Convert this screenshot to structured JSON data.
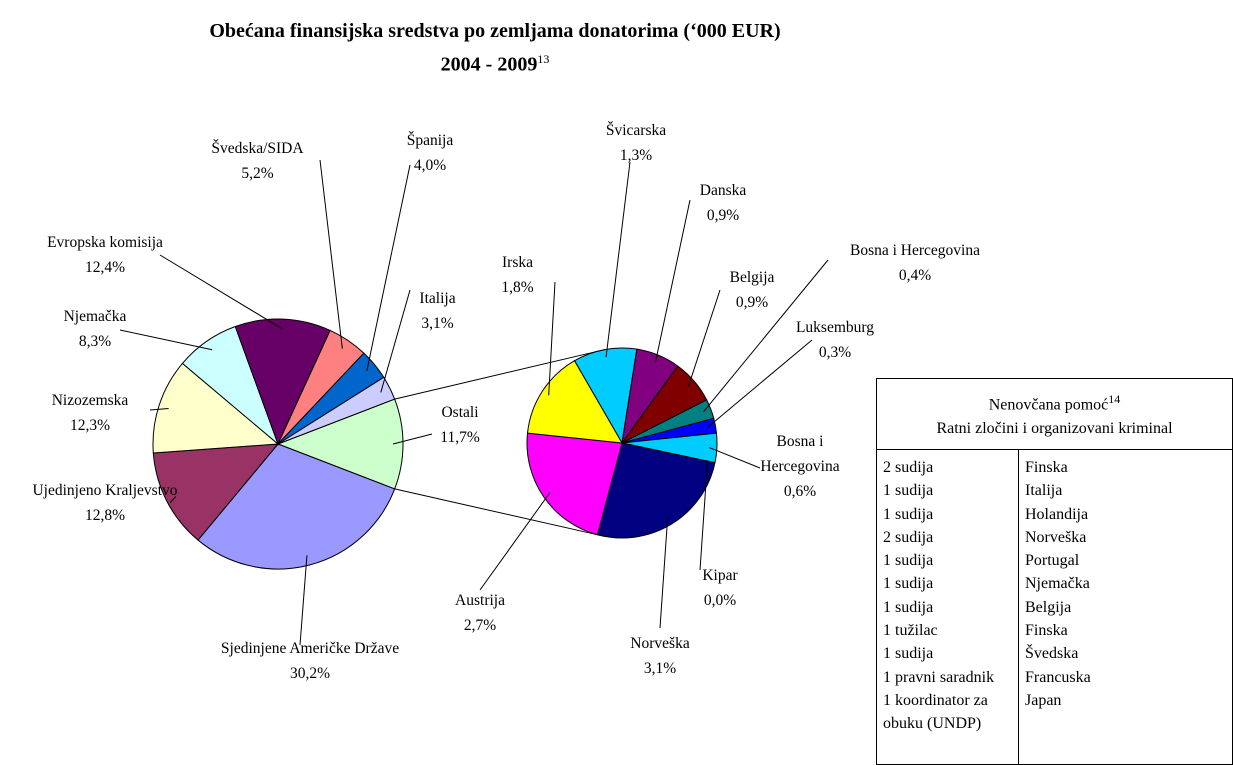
{
  "header": {
    "title": "Obećana finansijska sredstva po zemljama donatorima (‘000 EUR)",
    "period": "2004 - 2009",
    "footnote": "13"
  },
  "chart_data": [
    {
      "type": "pie",
      "categories": [
        "Ostali",
        "Sjedinjene Američke Države",
        "Ujedinjeno Kraljevstvo",
        "Nizozemska",
        "Njemačka",
        "Evropska komisija",
        "Švedska/SIDA",
        "Španija",
        "Italija"
      ],
      "values": [
        11.7,
        30.2,
        12.8,
        12.3,
        8.3,
        12.4,
        5.2,
        4.0,
        3.1
      ],
      "value_labels": [
        "11,7%",
        "30,2%",
        "12,8%",
        "12,3%",
        "8,3%",
        "12,4%",
        "5,2%",
        "4,0%",
        "3,1%"
      ],
      "colors": [
        "#CCFFCC",
        "#9999FF",
        "#993366",
        "#FFFFCC",
        "#CCFFFF",
        "#660066",
        "#FF8080",
        "#0066CC",
        "#CCCCFF"
      ]
    },
    {
      "type": "pie",
      "categories": [
        "Švicarska",
        "Danska",
        "Belgija",
        "Bosna i Hercegovina",
        "Luksemburg",
        "Bosna i Hercegovina",
        "Kipar",
        "Norveška",
        "Austrija",
        "Irska"
      ],
      "values": [
        1.3,
        0.9,
        0.9,
        0.4,
        0.3,
        0.6,
        0.0,
        3.1,
        2.7,
        1.8
      ],
      "value_labels": [
        "1,3%",
        "0,9%",
        "0,9%",
        "0,4%",
        "0,3%",
        "0,6%",
        "0,0%",
        "3,1%",
        "2,7%",
        "1,8%"
      ],
      "colors": [
        "#00CCFF",
        "#800080",
        "#800000",
        "#008080",
        "#0000FF",
        "#00CCFF",
        "#CCFFFF",
        "#000080",
        "#FF00FF",
        "#FFFF00"
      ]
    }
  ],
  "table": {
    "title": "Nenovčana pomoć",
    "footnote": "14",
    "subtitle": "Ratni zločini i organizovani kriminal",
    "rows": [
      [
        "2 sudija",
        "Finska"
      ],
      [
        "1 sudija",
        "Italija"
      ],
      [
        "1 sudija",
        "Holandija"
      ],
      [
        "2 sudija",
        "Norveška"
      ],
      [
        "1 sudija",
        "Portugal"
      ],
      [
        "1 sudija",
        "Njemačka"
      ],
      [
        "1 sudija",
        "Belgija"
      ],
      [
        "1 tužilac",
        "Finska"
      ],
      [
        "1 sudija",
        "Švedska"
      ],
      [
        "1 pravni saradnik",
        "Francuska"
      ],
      [
        "1 koordinator za obuku (UNDP)",
        "Japan"
      ]
    ]
  }
}
